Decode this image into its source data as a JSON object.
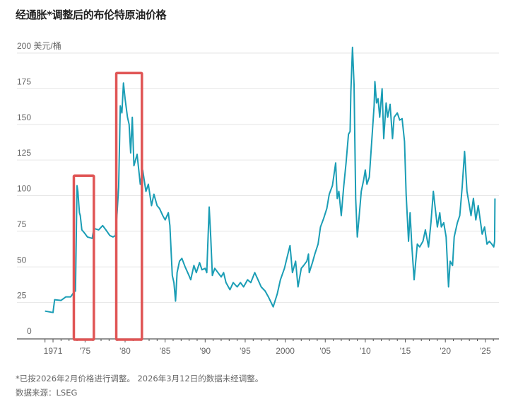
{
  "chart_data": {
    "type": "line",
    "title": "经通胀*调整后的布伦特原油价格",
    "ylabel": "",
    "y_unit_label": "200 美元/桶",
    "ylim": [
      0,
      200
    ],
    "xlim": [
      1969.5,
      2026.5
    ],
    "grid": true,
    "y_ticks": [
      "0",
      "25",
      "50",
      "75",
      "100",
      "125",
      "150",
      "175",
      "200 美元/桶"
    ],
    "y_tick_values": [
      0,
      25,
      50,
      75,
      100,
      125,
      150,
      175,
      200
    ],
    "x_ticks": [
      "1971",
      "'75",
      "'80",
      "'85",
      "'90",
      "'95",
      "2000",
      "'05",
      "'10",
      "'15",
      "'20",
      "'25"
    ],
    "x_tick_values": [
      1971,
      1975,
      1980,
      1985,
      1990,
      1995,
      2000,
      2005,
      2010,
      2015,
      2020,
      2025
    ],
    "line_color": "#1a9db5",
    "highlight_color": "#e05555",
    "highlights": [
      {
        "x_range": [
          1973.6,
          1976.1
        ],
        "y_top": 114
      },
      {
        "x_range": [
          1978.9,
          1982.1
        ],
        "y_top": 186
      }
    ],
    "series": [
      {
        "x": [
          1970.0,
          1971.0,
          1971.2,
          1972.0,
          1972.6,
          1973.2,
          1973.7,
          1973.8,
          1974.0,
          1974.1,
          1974.3,
          1974.4,
          1974.6,
          1974.9,
          1975.3,
          1975.9,
          1976.1,
          1976.7,
          1977.2,
          1977.6,
          1978.1,
          1978.5,
          1978.8,
          1979.0,
          1979.2,
          1979.4,
          1979.6,
          1979.8,
          1980.0,
          1980.3,
          1980.5,
          1980.7,
          1980.9,
          1981.1,
          1981.5,
          1981.9,
          1982.2,
          1982.6,
          1982.9,
          1983.3,
          1983.6,
          1984.0,
          1984.3,
          1984.7,
          1985.0,
          1985.4,
          1985.6,
          1985.9,
          1986.1,
          1986.3,
          1986.5,
          1986.8,
          1987.1,
          1987.5,
          1987.9,
          1988.2,
          1988.6,
          1988.9,
          1989.3,
          1989.6,
          1990.0,
          1990.2,
          1990.5,
          1990.7,
          1990.9,
          1991.2,
          1991.6,
          1992.0,
          1992.3,
          1992.6,
          1993.1,
          1993.5,
          1994.0,
          1994.4,
          1994.8,
          1995.3,
          1995.7,
          1996.2,
          1996.6,
          1997.0,
          1997.5,
          1997.9,
          1998.5,
          1999.0,
          1999.4,
          1999.9,
          2000.2,
          2000.6,
          2000.9,
          2001.3,
          2001.6,
          2002.0,
          2002.3,
          2002.7,
          2002.9,
          2003.0,
          2003.4,
          2003.7,
          2004.1,
          2004.4,
          2004.8,
          2005.2,
          2005.5,
          2005.9,
          2006.3,
          2006.5,
          2006.7,
          2007.0,
          2007.3,
          2007.6,
          2007.9,
          2008.1,
          2008.2,
          2008.4,
          2008.6,
          2008.8,
          2009.0,
          2009.2,
          2009.5,
          2009.8,
          2010.0,
          2010.2,
          2010.5,
          2010.8,
          2011.1,
          2011.2,
          2011.4,
          2011.6,
          2011.8,
          2012.1,
          2012.3,
          2012.6,
          2012.8,
          2013.1,
          2013.4,
          2013.6,
          2014.0,
          2014.3,
          2014.6,
          2014.9,
          2015.1,
          2015.4,
          2015.6,
          2015.8,
          2016.1,
          2016.5,
          2016.8,
          2017.2,
          2017.5,
          2017.9,
          2018.2,
          2018.5,
          2018.8,
          2019.0,
          2019.3,
          2019.5,
          2019.8,
          2020.1,
          2020.4,
          2020.6,
          2020.9,
          2021.1,
          2021.5,
          2021.8,
          2022.1,
          2022.4,
          2022.7,
          2023.0,
          2023.2,
          2023.5,
          2023.8,
          2024.1,
          2024.4,
          2024.6,
          2024.9,
          2025.2,
          2025.5,
          2025.8,
          2026.05,
          2026.15,
          2026.2
        ],
        "y": [
          19,
          18,
          27,
          26.5,
          29,
          29,
          33,
          33,
          107,
          103,
          88,
          86,
          76,
          74,
          71,
          70,
          77,
          76,
          79,
          76,
          72,
          71,
          72,
          88,
          106,
          163,
          158,
          179,
          168,
          155,
          150,
          130,
          155,
          121,
          129,
          108,
          118,
          103,
          108,
          93,
          101,
          93,
          91,
          86,
          83,
          88,
          79,
          44,
          39,
          26,
          46,
          54,
          56,
          50,
          45,
          41,
          51,
          46,
          53,
          48,
          49,
          46,
          92,
          71,
          44,
          49,
          46,
          43,
          46,
          39,
          34,
          39,
          36,
          39,
          36,
          41,
          39,
          46,
          41,
          36,
          33,
          29,
          22,
          31,
          41,
          49,
          56,
          65,
          46,
          54,
          36,
          49,
          51,
          54,
          59,
          46,
          53,
          59,
          66,
          78,
          84,
          91,
          101,
          107,
          123,
          98,
          103,
          86,
          106,
          123,
          143,
          145,
          173,
          204,
          178,
          98,
          71,
          83,
          103,
          111,
          118,
          108,
          113,
          138,
          163,
          180,
          165,
          168,
          155,
          175,
          140,
          165,
          155,
          164,
          140,
          155,
          158,
          153,
          154,
          138,
          101,
          68,
          88,
          66,
          41,
          66,
          64,
          68,
          76,
          64,
          81,
          103,
          88,
          78,
          88,
          78,
          81,
          71,
          36,
          54,
          51,
          71,
          81,
          86,
          106,
          131,
          103,
          93,
          86,
          98,
          83,
          93,
          81,
          73,
          78,
          66,
          68,
          66,
          64,
          68,
          98
        ]
      }
    ]
  },
  "footer": {
    "note": "*已按2026年2月价格进行调整。 2026年3月12日的数据未经调整。",
    "source": "数据来源：LSEG"
  }
}
